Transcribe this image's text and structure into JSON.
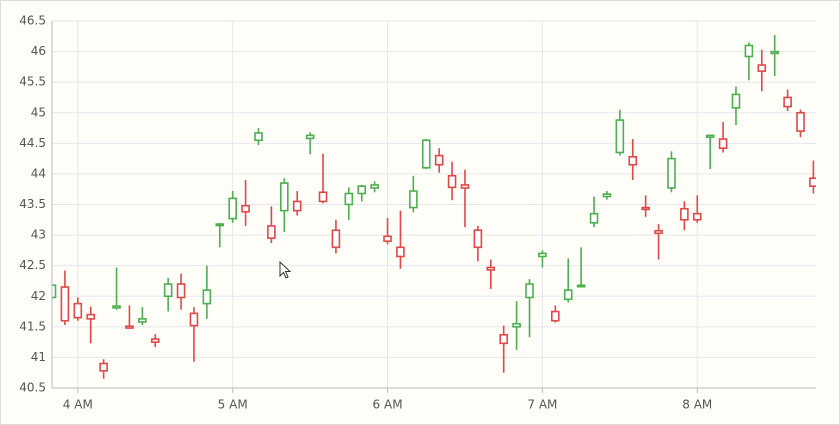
{
  "chart_data": {
    "type": "candlestick",
    "x": [
      230,
      235,
      240,
      245,
      250,
      255,
      260,
      265,
      270,
      275,
      280,
      285,
      290,
      295,
      300,
      305,
      310,
      315,
      320,
      325,
      330,
      335,
      340,
      345,
      350,
      355,
      360,
      365,
      370,
      375,
      380,
      385,
      390,
      395,
      400,
      405,
      410,
      415,
      420,
      425,
      430,
      435,
      440,
      445,
      450,
      455,
      460,
      465,
      470,
      475,
      480,
      485,
      490,
      495,
      500,
      505,
      510,
      515,
      520,
      525
    ],
    "open": [
      41.98,
      42.15,
      41.88,
      41.7,
      40.9,
      41.81,
      41.51,
      41.58,
      41.3,
      42.0,
      42.2,
      41.72,
      41.88,
      43.16,
      43.27,
      43.48,
      44.55,
      43.15,
      43.4,
      43.55,
      44.58,
      43.7,
      43.08,
      43.5,
      43.68,
      43.77,
      42.98,
      42.8,
      43.45,
      44.1,
      44.3,
      43.97,
      43.82,
      43.08,
      42.47,
      41.37,
      41.5,
      41.98,
      42.65,
      41.75,
      41.95,
      42.16,
      43.2,
      43.63,
      44.35,
      44.28,
      43.45,
      43.07,
      43.77,
      43.43,
      43.35,
      44.6,
      44.57,
      45.08,
      45.92,
      45.78,
      45.97,
      45.25,
      45.0,
      43.93
    ],
    "high": [
      42.2,
      42.42,
      41.98,
      41.83,
      40.97,
      42.47,
      41.85,
      41.82,
      41.38,
      42.3,
      42.37,
      41.82,
      42.5,
      43.2,
      43.72,
      43.9,
      44.75,
      43.47,
      43.93,
      43.72,
      44.68,
      44.33,
      43.25,
      43.78,
      43.82,
      43.88,
      43.28,
      43.4,
      43.97,
      44.57,
      44.42,
      44.2,
      44.07,
      43.15,
      42.6,
      41.52,
      41.92,
      42.28,
      42.75,
      41.85,
      42.62,
      42.8,
      43.63,
      43.72,
      45.05,
      44.57,
      43.65,
      43.18,
      44.37,
      43.55,
      43.65,
      44.63,
      44.85,
      45.43,
      46.15,
      46.03,
      46.27,
      45.38,
      45.05,
      44.22
    ],
    "low": [
      41.95,
      41.53,
      41.6,
      41.23,
      40.65,
      41.78,
      41.47,
      41.53,
      41.17,
      41.75,
      41.78,
      40.93,
      41.63,
      42.8,
      43.2,
      43.15,
      44.47,
      42.87,
      43.05,
      43.32,
      44.32,
      43.52,
      42.7,
      43.25,
      43.55,
      43.7,
      42.85,
      42.45,
      43.37,
      44.08,
      44.02,
      43.57,
      43.13,
      42.57,
      42.12,
      40.75,
      41.12,
      41.33,
      42.47,
      41.57,
      41.9,
      42.15,
      43.13,
      43.58,
      44.3,
      43.9,
      43.3,
      42.6,
      43.7,
      43.08,
      43.2,
      44.08,
      44.35,
      44.8,
      45.53,
      45.35,
      45.6,
      45.03,
      44.6,
      43.68
    ],
    "close": [
      42.18,
      41.6,
      41.65,
      41.63,
      40.78,
      41.84,
      41.48,
      41.63,
      41.25,
      42.2,
      41.98,
      41.52,
      42.1,
      43.18,
      43.6,
      43.38,
      44.67,
      42.95,
      43.85,
      43.4,
      44.63,
      43.55,
      42.8,
      43.68,
      43.8,
      43.82,
      42.9,
      42.65,
      43.72,
      44.55,
      44.15,
      43.78,
      43.77,
      42.8,
      42.43,
      41.23,
      41.55,
      42.2,
      42.7,
      41.6,
      42.1,
      42.18,
      43.35,
      43.67,
      44.88,
      44.15,
      43.42,
      43.03,
      44.25,
      43.25,
      43.25,
      44.63,
      44.42,
      45.3,
      46.1,
      45.68,
      46.0,
      45.1,
      44.7,
      43.8
    ],
    "up_color": "#4caf50",
    "down_color": "#e04848",
    "xlim": [
      230,
      526
    ],
    "xticks": [
      {
        "value": 240,
        "label": "4 AM"
      },
      {
        "value": 300,
        "label": "5 AM"
      },
      {
        "value": 360,
        "label": "6 AM"
      },
      {
        "value": 420,
        "label": "7 AM"
      },
      {
        "value": 480,
        "label": "8 AM"
      }
    ],
    "ylim": [
      40.5,
      46.5
    ],
    "yticks": [
      40.5,
      41,
      41.5,
      42,
      42.5,
      43,
      43.5,
      44,
      44.5,
      45,
      45.5,
      46,
      46.5
    ],
    "grid": true
  }
}
